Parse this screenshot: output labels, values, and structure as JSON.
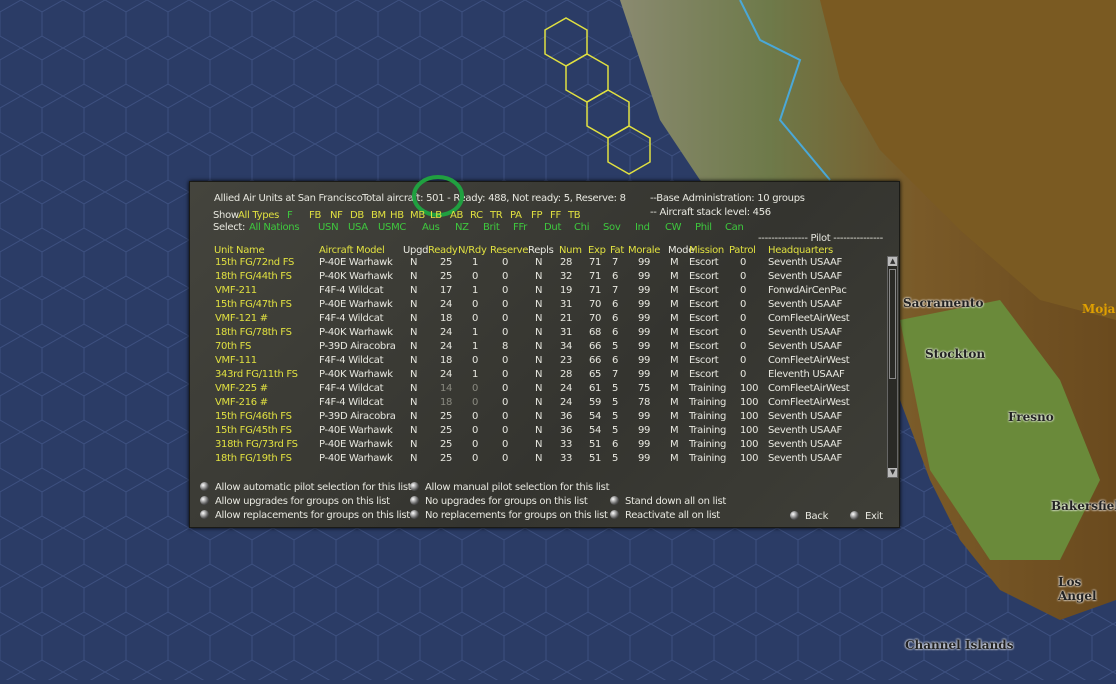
{
  "map": {
    "labels": [
      "Sacramento",
      "Stockton",
      "Fresno",
      "Bakersfield",
      "Los Angel",
      "Channel Islands",
      "Moja"
    ],
    "colors": {
      "ocean": "#2b3c66",
      "land": "#6b5a2a",
      "valley": "#6a8a3a"
    }
  },
  "dialog": {
    "title": "Allied Air Units at San Francisco",
    "total": "Total aircraft: 501 - Ready: 488, Not ready: 5, Reserve: 8",
    "base_admin": "--Base Administration: 10 groups",
    "stack_level": "-- Aircraft stack level: 456",
    "show_label": "Show",
    "show_types": [
      "All Types",
      "F",
      "FB",
      "NF",
      "DB",
      "BM",
      "HB",
      "MB",
      "LB",
      "AB",
      "RC",
      "TR",
      "PA",
      "FP",
      "FF",
      "TB"
    ],
    "select_label": "Select:",
    "nations": [
      "All Nations",
      "USN",
      "USA",
      "USMC",
      "Aus",
      "NZ",
      "Brit",
      "FFr",
      "Dut",
      "Chi",
      "Sov",
      "Ind",
      "CW",
      "Phil",
      "Can"
    ],
    "pilot_header": "--------------- Pilot ---------------",
    "columns": [
      "Unit Name",
      "Aircraft Model",
      "Upgd",
      "Ready",
      "N/Rdy",
      "Reserve",
      "Repls",
      "Num",
      "Exp",
      "Fat",
      "Morale",
      "Mode",
      "Mission",
      "Patrol",
      "Headquarters"
    ],
    "rows": [
      [
        "15th FG/72nd FS",
        "P-40E Warhawk",
        "N",
        "25",
        "1",
        "0",
        "N",
        "28",
        "71",
        "7",
        "99",
        "M",
        "Escort",
        "0",
        "Seventh USAAF"
      ],
      [
        "18th FG/44th FS",
        "P-40K Warhawk",
        "N",
        "25",
        "0",
        "0",
        "N",
        "32",
        "71",
        "6",
        "99",
        "M",
        "Escort",
        "0",
        "Seventh USAAF"
      ],
      [
        "VMF-211",
        "F4F-4 Wildcat",
        "N",
        "17",
        "1",
        "0",
        "N",
        "19",
        "71",
        "7",
        "99",
        "M",
        "Escort",
        "0",
        "FonwdAirCenPac"
      ],
      [
        "15th FG/47th FS",
        "P-40E Warhawk",
        "N",
        "24",
        "0",
        "0",
        "N",
        "31",
        "70",
        "6",
        "99",
        "M",
        "Escort",
        "0",
        "Seventh USAAF"
      ],
      [
        "VMF-121 #",
        "F4F-4 Wildcat",
        "N",
        "18",
        "0",
        "0",
        "N",
        "21",
        "70",
        "6",
        "99",
        "M",
        "Escort",
        "0",
        "ComFleetAirWest"
      ],
      [
        "18th FG/78th FS",
        "P-40K Warhawk",
        "N",
        "24",
        "1",
        "0",
        "N",
        "31",
        "68",
        "6",
        "99",
        "M",
        "Escort",
        "0",
        "Seventh USAAF"
      ],
      [
        "70th FS",
        "P-39D Airacobra",
        "N",
        "24",
        "1",
        "8",
        "N",
        "34",
        "66",
        "5",
        "99",
        "M",
        "Escort",
        "0",
        "Seventh USAAF"
      ],
      [
        "VMF-111",
        "F4F-4 Wildcat",
        "N",
        "18",
        "0",
        "0",
        "N",
        "23",
        "66",
        "6",
        "99",
        "M",
        "Escort",
        "0",
        "ComFleetAirWest"
      ],
      [
        "343rd FG/11th FS",
        "P-40K Warhawk",
        "N",
        "24",
        "1",
        "0",
        "N",
        "28",
        "65",
        "7",
        "99",
        "M",
        "Escort",
        "0",
        "Eleventh USAAF"
      ],
      [
        "VMF-225 #",
        "F4F-4 Wildcat",
        "N",
        "14",
        "0",
        "0",
        "N",
        "24",
        "61",
        "5",
        "75",
        "M",
        "Training",
        "100",
        "ComFleetAirWest"
      ],
      [
        "VMF-216 #",
        "F4F-4 Wildcat",
        "N",
        "18",
        "0",
        "0",
        "N",
        "24",
        "59",
        "5",
        "78",
        "M",
        "Training",
        "100",
        "ComFleetAirWest"
      ],
      [
        "15th FG/46th FS",
        "P-39D Airacobra",
        "N",
        "25",
        "0",
        "0",
        "N",
        "36",
        "54",
        "5",
        "99",
        "M",
        "Training",
        "100",
        "Seventh USAAF"
      ],
      [
        "15th FG/45th FS",
        "P-40E Warhawk",
        "N",
        "25",
        "0",
        "0",
        "N",
        "36",
        "54",
        "5",
        "99",
        "M",
        "Training",
        "100",
        "Seventh USAAF"
      ],
      [
        "318th FG/73rd FS",
        "P-40E Warhawk",
        "N",
        "25",
        "0",
        "0",
        "N",
        "33",
        "51",
        "6",
        "99",
        "M",
        "Training",
        "100",
        "Seventh USAAF"
      ],
      [
        "18th FG/19th FS",
        "P-40E Warhawk",
        "N",
        "25",
        "0",
        "0",
        "N",
        "33",
        "51",
        "5",
        "99",
        "M",
        "Training",
        "100",
        "Seventh USAAF"
      ]
    ],
    "dimmed_rows": [
      9,
      10
    ],
    "options": [
      "Allow automatic pilot selection for this list",
      "Allow manual pilot selection for this list",
      "Allow upgrades for groups on this list",
      "No upgrades for groups on this list",
      "Stand down all on list",
      "Allow replacements for groups on this list",
      "No replacements for groups on this list",
      "Reactivate all on list"
    ],
    "back": "Back",
    "exit": "Exit"
  }
}
